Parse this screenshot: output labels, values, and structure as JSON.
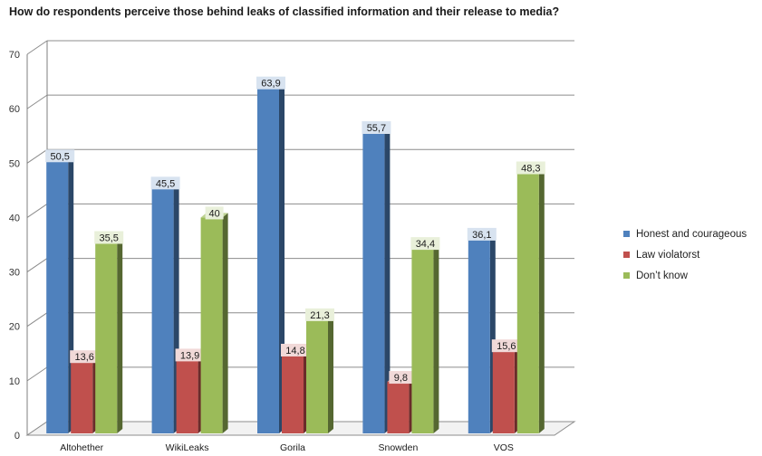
{
  "chart_data": {
    "type": "bar",
    "title": "How do respondents perceive those behind leaks of classified information and  their release to media?",
    "categories": [
      "Altohether",
      "WikiLeaks",
      "Gorila",
      "Snowden",
      "VOS"
    ],
    "series": [
      {
        "name": "Honest and courageous",
        "color": "#4f81bd",
        "values": [
          50.5,
          45.5,
          63.9,
          55.7,
          36.1
        ],
        "labels": [
          "50,5",
          "45,5",
          "63,9",
          "55,7",
          "36,1"
        ]
      },
      {
        "name": "Law violatorst",
        "color": "#c0504d",
        "values": [
          13.6,
          13.9,
          14.8,
          9.8,
          15.6
        ],
        "labels": [
          "13,6",
          "13,9",
          "14,8",
          "9,8",
          "15,6"
        ]
      },
      {
        "name": "Don’t know",
        "color": "#9bbb59",
        "values": [
          35.5,
          40,
          21.3,
          34.4,
          48.3
        ],
        "labels": [
          "35,5",
          "40",
          "21,3",
          "34,4",
          "48,3"
        ]
      }
    ],
    "yticks": [
      "0",
      "10",
      "20",
      "30",
      "40",
      "50",
      "60",
      "70"
    ],
    "ylim": [
      0,
      70
    ],
    "grid": true,
    "legend": "right",
    "chart_style": "3d-clustered-column"
  }
}
